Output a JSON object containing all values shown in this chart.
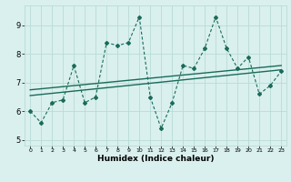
{
  "x": [
    0,
    1,
    2,
    3,
    4,
    5,
    6,
    7,
    8,
    9,
    10,
    11,
    12,
    13,
    14,
    15,
    16,
    17,
    18,
    19,
    20,
    21,
    22,
    23
  ],
  "y": [
    6.0,
    5.6,
    6.3,
    6.4,
    7.6,
    6.3,
    6.5,
    8.4,
    8.3,
    8.4,
    9.3,
    6.5,
    5.4,
    6.3,
    7.6,
    7.5,
    8.2,
    9.3,
    8.2,
    7.5,
    7.9,
    6.6,
    6.9,
    7.4
  ],
  "trend1_x": [
    0,
    23
  ],
  "trend1_y": [
    6.55,
    7.45
  ],
  "trend2_x": [
    0,
    23
  ],
  "trend2_y": [
    6.75,
    7.6
  ],
  "line_color": "#1a6b5a",
  "bg_color": "#d9f0ee",
  "grid_color": "#b8dbd7",
  "xlabel": "Humidex (Indice chaleur)",
  "xlim": [
    -0.5,
    23.5
  ],
  "ylim": [
    4.8,
    9.7
  ],
  "yticks": [
    5,
    6,
    7,
    8,
    9
  ],
  "xticks": [
    0,
    1,
    2,
    3,
    4,
    5,
    6,
    7,
    8,
    9,
    10,
    11,
    12,
    13,
    14,
    15,
    16,
    17,
    18,
    19,
    20,
    21,
    22,
    23
  ]
}
